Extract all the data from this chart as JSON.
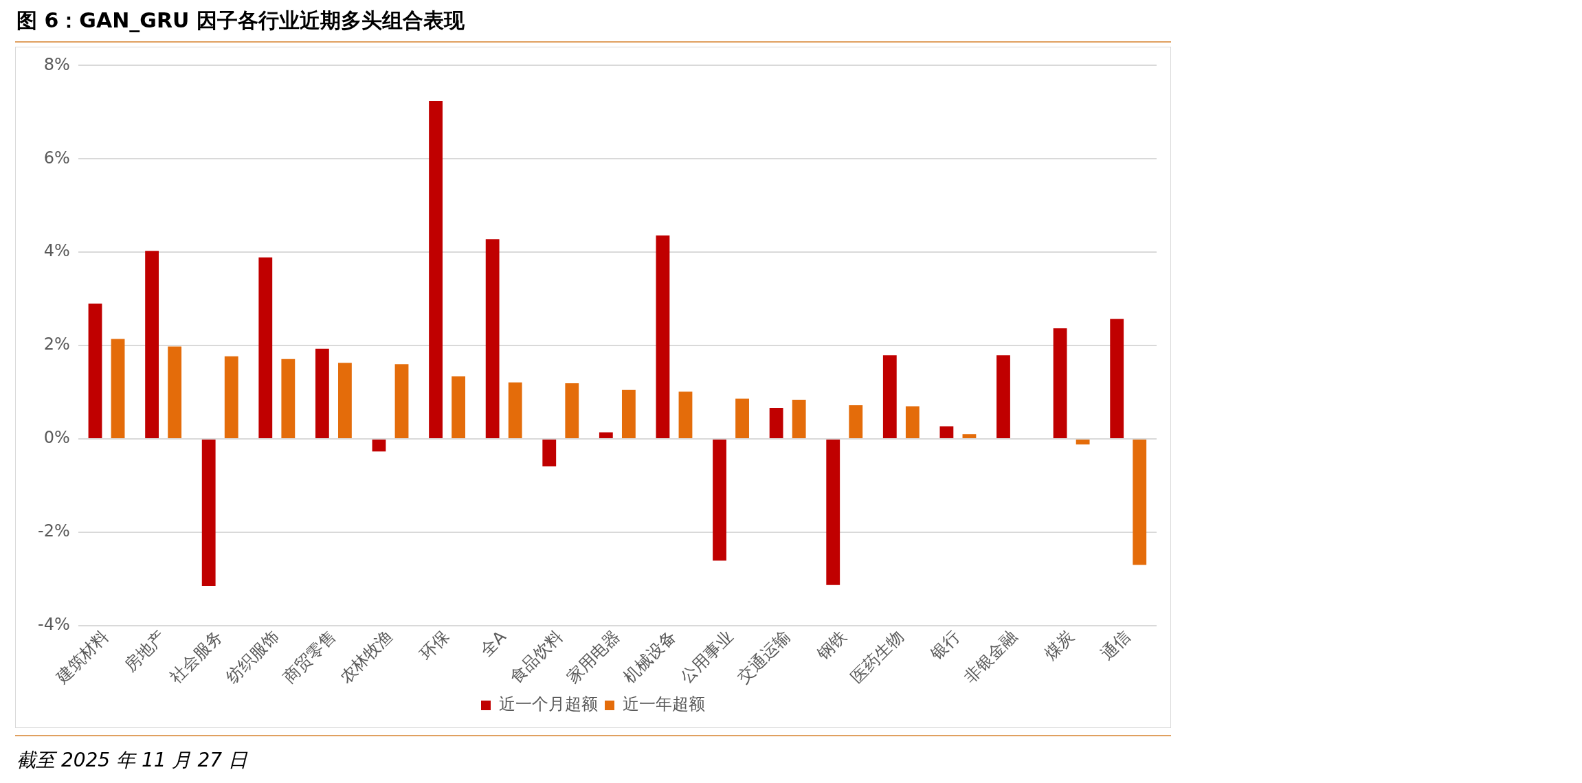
{
  "chart_data": {
    "type": "bar",
    "title": "图 6：GAN_GRU 因子各行业近期多头组合表现",
    "categories": [
      "建筑材料",
      "房地产",
      "社会服务",
      "纺织服饰",
      "商贸零售",
      "农林牧渔",
      "环保",
      "全A",
      "食品饮料",
      "家用电器",
      "机械设备",
      "公用事业",
      "交通运输",
      "钢铁",
      "医药生物",
      "银行",
      "非银金融",
      "煤炭",
      "通信"
    ],
    "series": [
      {
        "name": "近一个月超额",
        "color": "#c00000",
        "values": [
          2.9,
          4.03,
          -3.15,
          3.89,
          1.93,
          -0.27,
          7.24,
          4.28,
          -0.59,
          0.14,
          4.36,
          -2.61,
          0.66,
          -3.13,
          1.79,
          0.27,
          1.79,
          2.37,
          2.57
        ]
      },
      {
        "name": "近一年超额",
        "color": "#e46c0a",
        "values": [
          2.14,
          1.98,
          1.77,
          1.71,
          1.63,
          1.6,
          1.34,
          1.21,
          1.19,
          1.05,
          1.01,
          0.86,
          0.84,
          0.72,
          0.7,
          0.1,
          null,
          -0.12,
          -2.7
        ]
      }
    ],
    "ylim": [
      -4,
      8
    ],
    "yticks": [
      {
        "value": -4,
        "label": "-4%"
      },
      {
        "value": -2,
        "label": "-2%"
      },
      {
        "value": 0,
        "label": "0%"
      },
      {
        "value": 2,
        "label": "2%"
      },
      {
        "value": 4,
        "label": "4%"
      },
      {
        "value": 6,
        "label": "6%"
      },
      {
        "value": 8,
        "label": "8%"
      }
    ],
    "grid": "y",
    "legend": "bottom",
    "annotations": [
      "截至 2025 年 11 月 27 日"
    ]
  }
}
